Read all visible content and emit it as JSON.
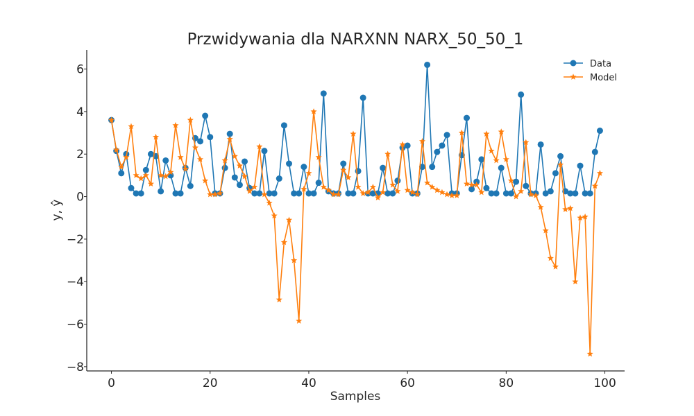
{
  "chart_data": {
    "type": "line",
    "title": "Przwidywania dla NARXNN NARX_50_50_1",
    "xlabel": "Samples",
    "ylabel": "y, ŷ",
    "xlim": [
      -5,
      104
    ],
    "ylim": [
      -8.2,
      6.9
    ],
    "xticks": [
      0,
      20,
      40,
      60,
      80,
      100
    ],
    "yticks": [
      -8,
      -6,
      -4,
      -2,
      0,
      2,
      4,
      6
    ],
    "xtick_labels": [
      "0",
      "20",
      "40",
      "60",
      "80",
      "100"
    ],
    "ytick_labels": [
      "−8",
      "−6",
      "−4",
      "−2",
      "0",
      "2",
      "4",
      "6"
    ],
    "grid": false,
    "legend_position": "top-right",
    "series": [
      {
        "name": "Data",
        "color": "#1f77b4",
        "marker": "circle",
        "values": [
          3.6,
          2.15,
          1.1,
          2.0,
          0.4,
          0.15,
          0.15,
          1.25,
          2.0,
          1.9,
          0.25,
          1.7,
          1.0,
          0.15,
          0.15,
          1.35,
          0.5,
          2.75,
          2.6,
          3.8,
          2.8,
          0.15,
          0.15,
          1.35,
          2.95,
          0.9,
          0.55,
          1.65,
          0.4,
          0.15,
          0.15,
          2.15,
          0.15,
          0.15,
          0.85,
          3.35,
          1.55,
          0.15,
          0.15,
          1.4,
          0.15,
          0.15,
          0.65,
          4.85,
          0.25,
          0.15,
          0.15,
          1.55,
          0.15,
          0.15,
          1.2,
          4.65,
          0.15,
          0.15,
          0.15,
          1.35,
          0.15,
          0.15,
          0.75,
          2.3,
          2.4,
          0.15,
          0.15,
          1.4,
          6.2,
          1.4,
          2.1,
          2.4,
          2.9,
          0.15,
          0.15,
          1.95,
          3.7,
          0.35,
          0.7,
          1.75,
          0.4,
          0.15,
          0.15,
          1.35,
          0.15,
          0.15,
          0.7,
          4.8,
          0.5,
          0.15,
          0.15,
          2.45,
          0.15,
          0.25,
          1.1,
          1.9,
          0.25,
          0.15,
          0.15,
          1.45,
          0.15,
          0.15,
          2.1,
          3.1
        ]
      },
      {
        "name": "Model",
        "color": "#ff7f0e",
        "marker": "star",
        "values": [
          3.6,
          2.2,
          1.4,
          1.85,
          3.3,
          1.0,
          0.85,
          1.0,
          0.6,
          2.8,
          1.0,
          0.95,
          1.15,
          3.35,
          1.85,
          1.3,
          3.6,
          2.3,
          1.75,
          0.75,
          0.1,
          0.1,
          0.15,
          1.7,
          2.7,
          1.9,
          1.45,
          0.95,
          0.25,
          0.45,
          2.35,
          0.1,
          -0.3,
          -0.9,
          -4.85,
          -2.15,
          -1.1,
          -3.0,
          -5.85,
          0.35,
          1.1,
          4.0,
          1.85,
          0.45,
          0.3,
          0.1,
          0.1,
          1.25,
          0.9,
          2.95,
          0.45,
          0.15,
          0.2,
          0.45,
          -0.05,
          0.2,
          2.0,
          0.55,
          0.25,
          2.45,
          0.3,
          0.2,
          0.1,
          2.6,
          0.65,
          0.45,
          0.3,
          0.2,
          0.1,
          0.05,
          0.05,
          3.0,
          0.6,
          0.55,
          0.55,
          0.2,
          2.95,
          2.15,
          1.7,
          3.05,
          1.75,
          0.75,
          0.0,
          0.25,
          2.55,
          0.1,
          0.05,
          -0.5,
          -1.6,
          -2.9,
          -3.3,
          1.5,
          -0.6,
          -0.55,
          -4.0,
          -1.0,
          -0.95,
          -7.4,
          0.5,
          1.1
        ]
      }
    ]
  }
}
